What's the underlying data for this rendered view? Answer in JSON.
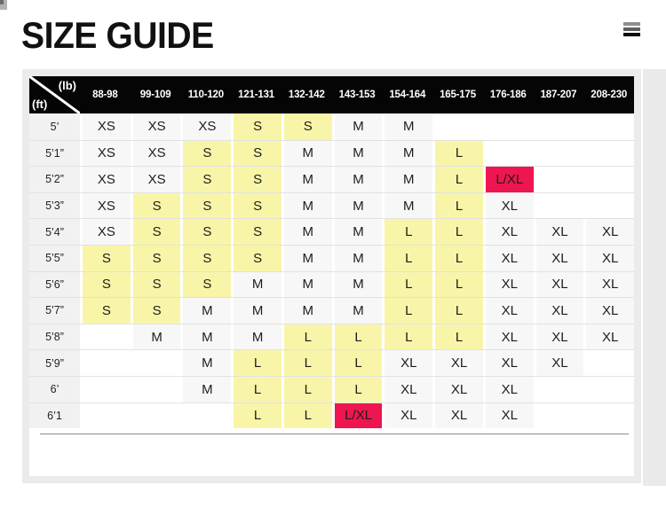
{
  "page": {
    "title": "SIZE GUIDE"
  },
  "menu": {
    "icon": "hamburger-menu-icon"
  },
  "colors": {
    "highlight_yellow": "#f8f5a8",
    "highlight_red": "#ed1650",
    "header_bg": "#050505",
    "filled_cell_bg": "#f7f7f7",
    "label_cell_bg": "#f1f1f1"
  },
  "table": {
    "corner": {
      "top_label": "(lb)",
      "bottom_label": "(ft)"
    },
    "columns": [
      "88-98",
      "99-109",
      "110-120",
      "121-131",
      "132-142",
      "143-153",
      "154-164",
      "165-175",
      "176-186",
      "187-207",
      "208-230"
    ],
    "rows": [
      {
        "height": "5’",
        "cells": [
          {
            "v": "XS",
            "s": "plain"
          },
          {
            "v": "XS",
            "s": "plain"
          },
          {
            "v": "XS",
            "s": "plain"
          },
          {
            "v": "S",
            "s": "yellow"
          },
          {
            "v": "S",
            "s": "yellow"
          },
          {
            "v": "M",
            "s": "plain"
          },
          {
            "v": "M",
            "s": "plain"
          },
          {
            "v": "",
            "s": "empty"
          },
          {
            "v": "",
            "s": "empty"
          },
          {
            "v": "",
            "s": "empty"
          },
          {
            "v": "",
            "s": "empty"
          }
        ]
      },
      {
        "height": "5’1”",
        "cells": [
          {
            "v": "XS",
            "s": "plain"
          },
          {
            "v": "XS",
            "s": "plain"
          },
          {
            "v": "S",
            "s": "yellow"
          },
          {
            "v": "S",
            "s": "yellow"
          },
          {
            "v": "M",
            "s": "plain"
          },
          {
            "v": "M",
            "s": "plain"
          },
          {
            "v": "M",
            "s": "plain"
          },
          {
            "v": "L",
            "s": "yellow"
          },
          {
            "v": "",
            "s": "empty"
          },
          {
            "v": "",
            "s": "empty"
          },
          {
            "v": "",
            "s": "empty"
          }
        ]
      },
      {
        "height": "5’2”",
        "cells": [
          {
            "v": "XS",
            "s": "plain"
          },
          {
            "v": "XS",
            "s": "plain"
          },
          {
            "v": "S",
            "s": "yellow"
          },
          {
            "v": "S",
            "s": "yellow"
          },
          {
            "v": "M",
            "s": "plain"
          },
          {
            "v": "M",
            "s": "plain"
          },
          {
            "v": "M",
            "s": "plain"
          },
          {
            "v": "L",
            "s": "yellow"
          },
          {
            "v": "L/XL",
            "s": "red"
          },
          {
            "v": "",
            "s": "empty"
          },
          {
            "v": "",
            "s": "empty"
          }
        ]
      },
      {
        "height": "5’3”",
        "cells": [
          {
            "v": "XS",
            "s": "plain"
          },
          {
            "v": "S",
            "s": "yellow"
          },
          {
            "v": "S",
            "s": "yellow"
          },
          {
            "v": "S",
            "s": "yellow"
          },
          {
            "v": "M",
            "s": "plain"
          },
          {
            "v": "M",
            "s": "plain"
          },
          {
            "v": "M",
            "s": "plain"
          },
          {
            "v": "L",
            "s": "yellow"
          },
          {
            "v": "XL",
            "s": "plain"
          },
          {
            "v": "",
            "s": "empty"
          },
          {
            "v": "",
            "s": "empty"
          }
        ]
      },
      {
        "height": "5’4”",
        "cells": [
          {
            "v": "XS",
            "s": "plain"
          },
          {
            "v": "S",
            "s": "yellow"
          },
          {
            "v": "S",
            "s": "yellow"
          },
          {
            "v": "S",
            "s": "yellow"
          },
          {
            "v": "M",
            "s": "plain"
          },
          {
            "v": "M",
            "s": "plain"
          },
          {
            "v": "L",
            "s": "yellow"
          },
          {
            "v": "L",
            "s": "yellow"
          },
          {
            "v": "XL",
            "s": "plain"
          },
          {
            "v": "XL",
            "s": "plain"
          },
          {
            "v": "XL",
            "s": "plain"
          }
        ]
      },
      {
        "height": "5’5”",
        "cells": [
          {
            "v": "S",
            "s": "yellow"
          },
          {
            "v": "S",
            "s": "yellow"
          },
          {
            "v": "S",
            "s": "yellow"
          },
          {
            "v": "S",
            "s": "yellow"
          },
          {
            "v": "M",
            "s": "plain"
          },
          {
            "v": "M",
            "s": "plain"
          },
          {
            "v": "L",
            "s": "yellow"
          },
          {
            "v": "L",
            "s": "yellow"
          },
          {
            "v": "XL",
            "s": "plain"
          },
          {
            "v": "XL",
            "s": "plain"
          },
          {
            "v": "XL",
            "s": "plain"
          }
        ]
      },
      {
        "height": "5’6”",
        "cells": [
          {
            "v": "S",
            "s": "yellow"
          },
          {
            "v": "S",
            "s": "yellow"
          },
          {
            "v": "S",
            "s": "yellow"
          },
          {
            "v": "M",
            "s": "plain"
          },
          {
            "v": "M",
            "s": "plain"
          },
          {
            "v": "M",
            "s": "plain"
          },
          {
            "v": "L",
            "s": "yellow"
          },
          {
            "v": "L",
            "s": "yellow"
          },
          {
            "v": "XL",
            "s": "plain"
          },
          {
            "v": "XL",
            "s": "plain"
          },
          {
            "v": "XL",
            "s": "plain"
          }
        ]
      },
      {
        "height": "5’7”",
        "cells": [
          {
            "v": "S",
            "s": "yellow"
          },
          {
            "v": "S",
            "s": "yellow"
          },
          {
            "v": "M",
            "s": "plain"
          },
          {
            "v": "M",
            "s": "plain"
          },
          {
            "v": "M",
            "s": "plain"
          },
          {
            "v": "M",
            "s": "plain"
          },
          {
            "v": "L",
            "s": "yellow"
          },
          {
            "v": "L",
            "s": "yellow"
          },
          {
            "v": "XL",
            "s": "plain"
          },
          {
            "v": "XL",
            "s": "plain"
          },
          {
            "v": "XL",
            "s": "plain"
          }
        ]
      },
      {
        "height": "5’8”",
        "cells": [
          {
            "v": "",
            "s": "empty"
          },
          {
            "v": "M",
            "s": "plain"
          },
          {
            "v": "M",
            "s": "plain"
          },
          {
            "v": "M",
            "s": "plain"
          },
          {
            "v": "L",
            "s": "yellow"
          },
          {
            "v": "L",
            "s": "yellow"
          },
          {
            "v": "L",
            "s": "yellow"
          },
          {
            "v": "L",
            "s": "yellow"
          },
          {
            "v": "XL",
            "s": "plain"
          },
          {
            "v": "XL",
            "s": "plain"
          },
          {
            "v": "XL",
            "s": "plain"
          }
        ]
      },
      {
        "height": "5’9”",
        "cells": [
          {
            "v": "",
            "s": "empty"
          },
          {
            "v": "",
            "s": "empty"
          },
          {
            "v": "M",
            "s": "plain"
          },
          {
            "v": "L",
            "s": "yellow"
          },
          {
            "v": "L",
            "s": "yellow"
          },
          {
            "v": "L",
            "s": "yellow"
          },
          {
            "v": "XL",
            "s": "plain"
          },
          {
            "v": "XL",
            "s": "plain"
          },
          {
            "v": "XL",
            "s": "plain"
          },
          {
            "v": "XL",
            "s": "plain"
          },
          {
            "v": "",
            "s": "empty"
          }
        ]
      },
      {
        "height": "6’",
        "cells": [
          {
            "v": "",
            "s": "empty"
          },
          {
            "v": "",
            "s": "empty"
          },
          {
            "v": "M",
            "s": "plain"
          },
          {
            "v": "L",
            "s": "yellow"
          },
          {
            "v": "L",
            "s": "yellow"
          },
          {
            "v": "L",
            "s": "yellow"
          },
          {
            "v": "XL",
            "s": "plain"
          },
          {
            "v": "XL",
            "s": "plain"
          },
          {
            "v": "XL",
            "s": "plain"
          },
          {
            "v": "",
            "s": "empty"
          },
          {
            "v": "",
            "s": "empty"
          }
        ]
      },
      {
        "height": "6’1",
        "cells": [
          {
            "v": "",
            "s": "empty"
          },
          {
            "v": "",
            "s": "empty"
          },
          {
            "v": "",
            "s": "empty"
          },
          {
            "v": "L",
            "s": "yellow"
          },
          {
            "v": "L",
            "s": "yellow"
          },
          {
            "v": "L/XL",
            "s": "red"
          },
          {
            "v": "XL",
            "s": "plain"
          },
          {
            "v": "XL",
            "s": "plain"
          },
          {
            "v": "XL",
            "s": "plain"
          },
          {
            "v": "",
            "s": "empty"
          },
          {
            "v": "",
            "s": "empty"
          }
        ]
      }
    ]
  }
}
